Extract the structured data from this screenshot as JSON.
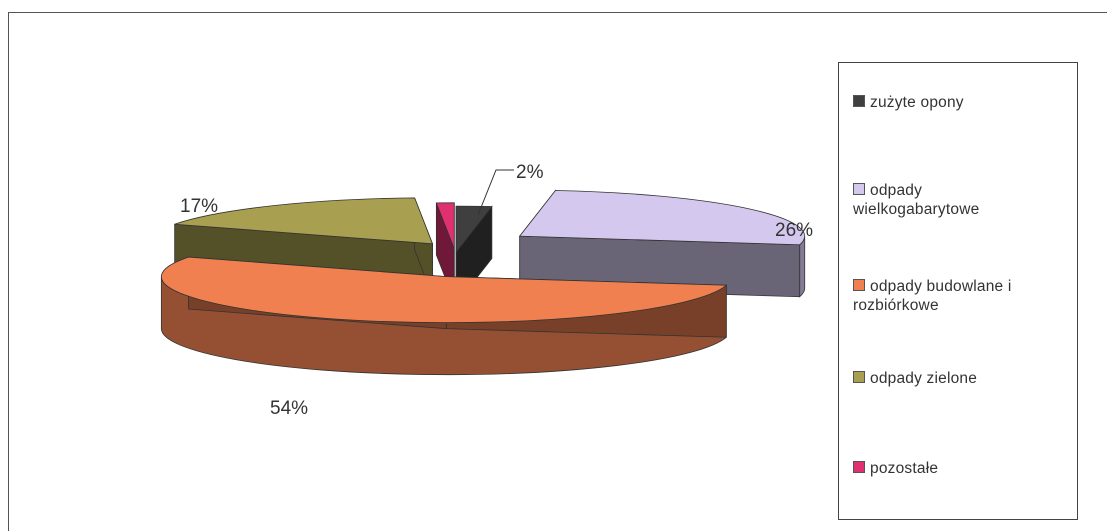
{
  "chart_data": {
    "type": "pie",
    "style": "3d-exploded",
    "title": "",
    "categories": [
      "zużyte opony",
      "odpady wielkogabarytowe",
      "odpady budowlane i rozbiórkowe",
      "odpady zielone",
      "pozostałe"
    ],
    "values": [
      2,
      26,
      54,
      17,
      1
    ],
    "data_labels": [
      "2%",
      "26%",
      "54%",
      "17%",
      ""
    ],
    "colors": [
      "#3f3f3f",
      "#d4c8ee",
      "#f08050",
      "#a8a050",
      "#e03070"
    ],
    "legend": {
      "placement": "right",
      "entries": [
        "zużyte opony",
        "odpady wielkogabarytowe",
        "odpady budowlane i rozbiórkowe",
        "odpady zielone",
        "pozostałe"
      ]
    }
  }
}
